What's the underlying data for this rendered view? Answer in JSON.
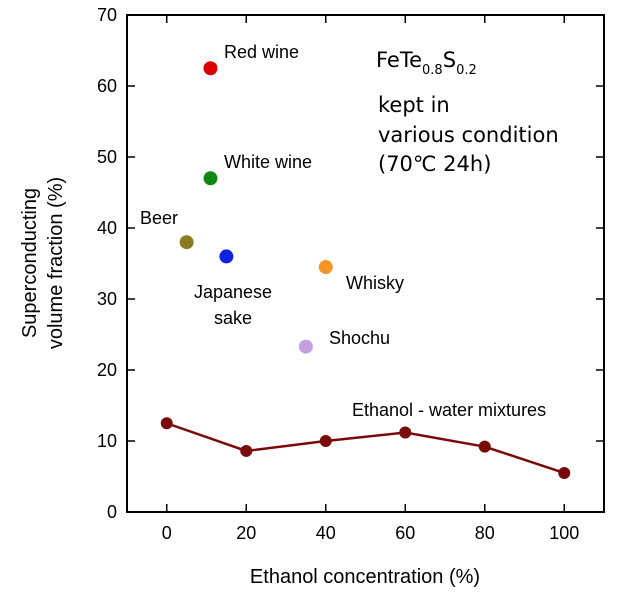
{
  "chart_data": {
    "type": "scatter",
    "xlabel": "Ethanol concentration (%)",
    "ylabel_line1": "Superconducting",
    "ylabel_line2": "volume fraction (%)",
    "xlim": [
      -10,
      110
    ],
    "ylim": [
      0,
      70
    ],
    "x_ticks": [
      0,
      20,
      40,
      60,
      80,
      100
    ],
    "y_ticks": [
      0,
      10,
      20,
      30,
      40,
      50,
      60,
      70
    ],
    "grid": false,
    "points": [
      {
        "name": "Red wine",
        "x": 11,
        "y": 62.5,
        "color": "#dd0000"
      },
      {
        "name": "White wine",
        "x": 11,
        "y": 47,
        "color": "#118811"
      },
      {
        "name": "Beer",
        "x": 5,
        "y": 38,
        "color": "#8b7a22"
      },
      {
        "name": "Japanese sake",
        "x": 15,
        "y": 36,
        "color": "#1022dd"
      },
      {
        "name": "Whisky",
        "x": 40,
        "y": 34.5,
        "color": "#f79427"
      },
      {
        "name": "Shochu",
        "x": 35,
        "y": 23.3,
        "color": "#c59ee0"
      }
    ],
    "series": [
      {
        "name": "Ethanol - water mixtures",
        "x": [
          0,
          20,
          40,
          60,
          80,
          100
        ],
        "y": [
          12.5,
          8.6,
          10,
          11.2,
          9.2,
          5.5
        ],
        "color": "#7a0a0a"
      }
    ],
    "annotation": {
      "formula_base1": "FeTe",
      "formula_sub1": "0.8",
      "formula_base2": "S",
      "formula_sub2": "0.2",
      "line2": "kept in",
      "line3": "various condition",
      "line4": "(70℃ 24h)"
    }
  }
}
